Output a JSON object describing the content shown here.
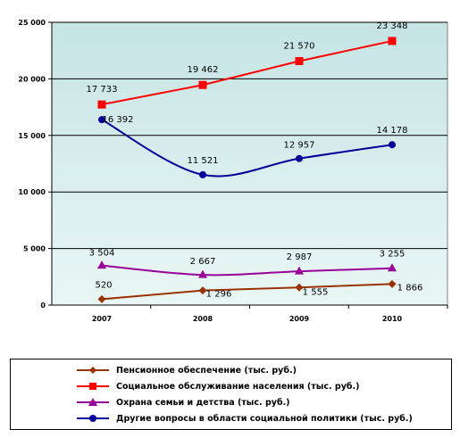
{
  "chart_data": {
    "type": "line",
    "categories": [
      "2007",
      "2008",
      "2009",
      "2010"
    ],
    "ylim": [
      0,
      25000
    ],
    "yticks": [
      0,
      5000,
      10000,
      15000,
      20000,
      25000
    ],
    "ytick_labels": [
      "0",
      "5 000",
      "10 000",
      "15 000",
      "20 000",
      "25 000"
    ],
    "grid": true,
    "legend_position": "bottom",
    "series": [
      {
        "name": "Пенсионное обеспечение (тыс. руб.)",
        "values": [
          520,
          1296,
          1555,
          1866
        ],
        "labels": [
          "520",
          "1 296",
          "1 555",
          "1 866"
        ],
        "color": "#993300",
        "marker": "diamond",
        "smooth": false
      },
      {
        "name": "Социальное обслуживание населения (тыс. руб.)",
        "values": [
          17733,
          19462,
          21570,
          23348
        ],
        "labels": [
          "17 733",
          "19 462",
          "21 570",
          "23 348"
        ],
        "color": "#ff0000",
        "marker": "square",
        "smooth": false
      },
      {
        "name": "Охрана семьи и детства (тыс. руб.)",
        "values": [
          3504,
          2667,
          2987,
          3255
        ],
        "labels": [
          "3 504",
          "2 667",
          "2 987",
          "3 255"
        ],
        "color": "#990099",
        "marker": "triangle",
        "smooth": true
      },
      {
        "name": "Другие вопросы в области социальной политики (тыс. руб.)",
        "values": [
          16392,
          11521,
          12957,
          14178
        ],
        "labels": [
          "16 392",
          "11 521",
          "12 957",
          "14 178"
        ],
        "color": "#000099",
        "marker": "circle",
        "smooth": true
      }
    ]
  },
  "legend": {
    "items": [
      "Пенсионное обеспечение (тыс. руб.)",
      "Социальное обслуживание населения (тыс. руб.)",
      "Охрана семьи и детства (тыс. руб.)",
      "Другие вопросы в области социальной политики (тыс. руб.)"
    ]
  }
}
